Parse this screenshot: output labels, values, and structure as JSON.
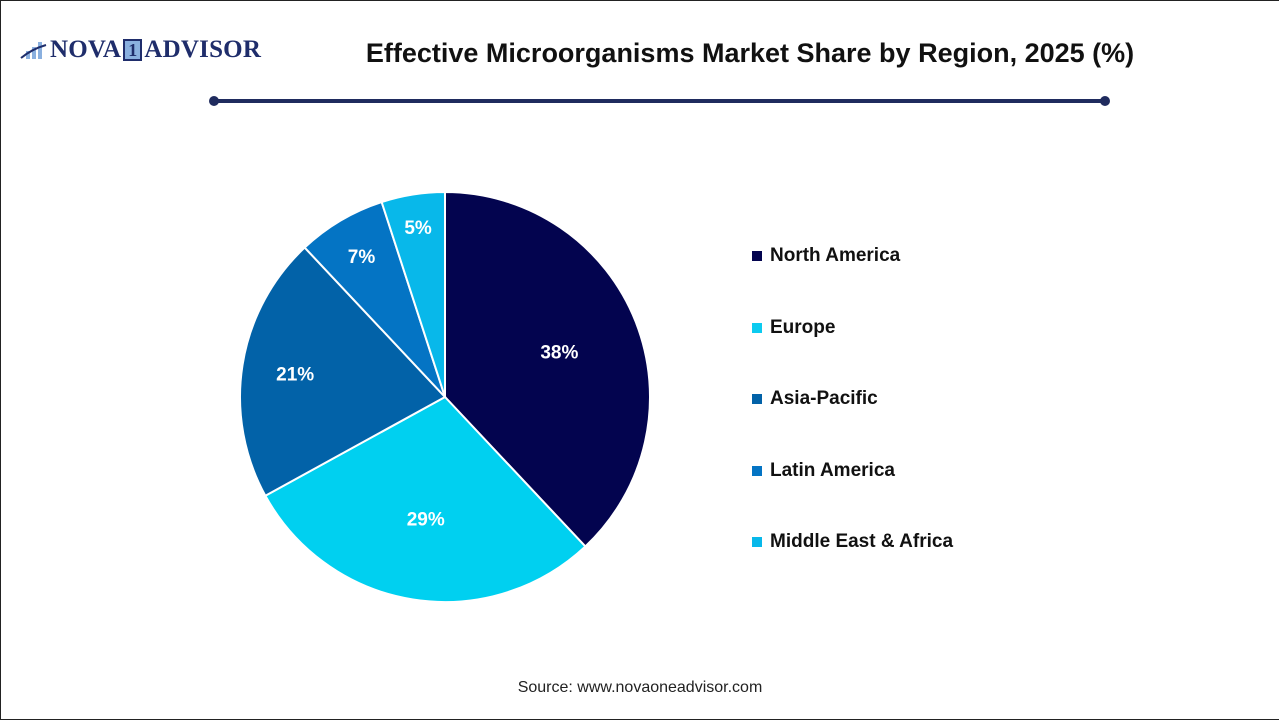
{
  "header": {
    "logo_left": "NOVA",
    "logo_one": "1",
    "logo_right": "ADVISOR",
    "title": "Effective Microorganisms Market Share by Region, 2025 (%)"
  },
  "colors": {
    "north_america": "#03044f",
    "europe": "#00d0f0",
    "asia_pacific": "#0262a8",
    "latin_america": "#0474c4",
    "middle_east_africa": "#08b8ea",
    "rule": "#1f2b5e"
  },
  "chart_data": {
    "type": "pie",
    "title": "Effective Microorganisms Market Share by Region, 2025 (%)",
    "categories": [
      "North America",
      "Europe",
      "Asia-Pacific",
      "Latin America",
      "Middle East & Africa"
    ],
    "values": [
      38,
      29,
      21,
      7,
      5
    ],
    "labels": [
      "38%",
      "29%",
      "21%",
      "7%",
      "5%"
    ],
    "legend_position": "right",
    "start_angle": "12 o'clock, clockwise"
  },
  "legend": {
    "items": [
      {
        "label": "North America",
        "color": "#03044f"
      },
      {
        "label": "Europe",
        "color": "#0ccbf0"
      },
      {
        "label": "Asia-Pacific",
        "color": "#0262a8"
      },
      {
        "label": "Latin America",
        "color": "#0474c4"
      },
      {
        "label": "Middle East & Africa",
        "color": "#08b8ea"
      }
    ]
  },
  "footer": {
    "source": "Source: www.novaoneadvisor.com"
  }
}
